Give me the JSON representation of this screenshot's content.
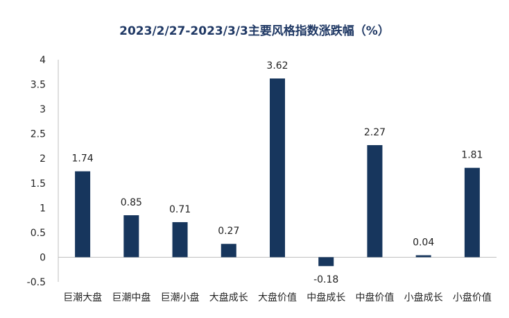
{
  "chart_data": {
    "type": "bar",
    "title": "2023/2/27-2023/3/3主要风格指数涨跌幅（%）",
    "categories": [
      "巨潮大盘",
      "巨潮中盘",
      "巨潮小盘",
      "大盘成长",
      "大盘价值",
      "中盘成长",
      "中盘价值",
      "小盘成长",
      "小盘价值"
    ],
    "values": [
      1.74,
      0.85,
      0.71,
      0.27,
      3.62,
      -0.18,
      2.27,
      0.04,
      1.81
    ],
    "value_labels": [
      "1.74",
      "0.85",
      "0.71",
      "0.27",
      "3.62",
      "-0.18",
      "2.27",
      "0.04",
      "1.81"
    ],
    "y_ticks": [
      "-0.5",
      "0",
      "0.5",
      "1",
      "1.5",
      "2",
      "2.5",
      "3",
      "3.5",
      "4"
    ],
    "ylim": [
      -0.5,
      4
    ],
    "xlabel": "",
    "ylabel": "",
    "grid": false,
    "legend": "none",
    "colors": {
      "bar": "#17365d",
      "axis": "#bfbfbf",
      "title": "#1f3864"
    }
  }
}
